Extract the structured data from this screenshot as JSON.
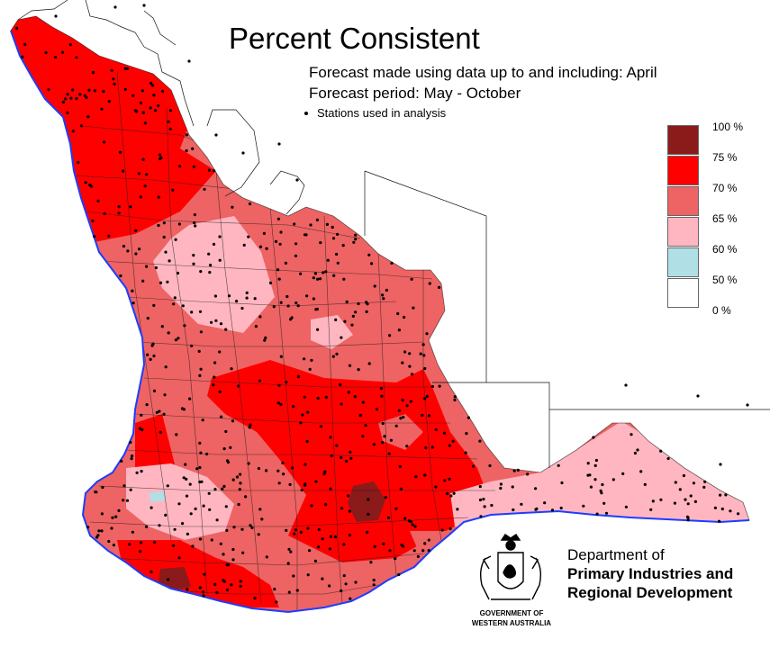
{
  "title": "Percent Consistent",
  "forecast_made": "Forecast made using data up to and including: April",
  "forecast_period": "Forecast period: May - October",
  "stations_label": "Stations used in analysis",
  "legend": [
    {
      "label": "100 %",
      "color": "#8b1a1a"
    },
    {
      "label": "75 %",
      "color": "#ff0000"
    },
    {
      "label": "70 %",
      "color": "#ee6363"
    },
    {
      "label": "65 %",
      "color": "#ffb6c1"
    },
    {
      "label": "60 %",
      "color": "#b0e0e6"
    },
    {
      "label": "50 %",
      "color": "#ffffff"
    },
    {
      "label": "0 %",
      "color": null
    }
  ],
  "department": {
    "line1": "Department of",
    "line2": "Primary Industries and",
    "line3": "Regional Development"
  },
  "government": {
    "line1": "GOVERNMENT OF",
    "line2": "WESTERN AUSTRALIA"
  },
  "colors": {
    "coast": "#1e3cff",
    "deep_red": "#8b1a1a",
    "red": "#ff0000",
    "salmon": "#ee6363",
    "pink": "#ffb6c1",
    "light_blue": "#b0e0e6"
  }
}
